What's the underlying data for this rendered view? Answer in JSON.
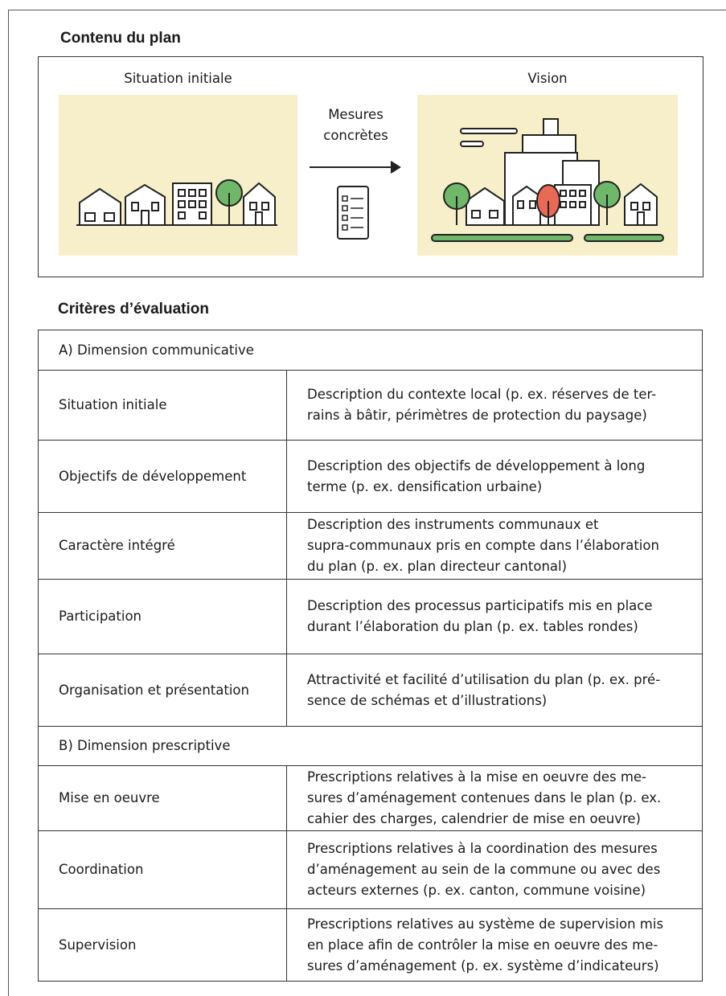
{
  "plan": {
    "title": "Contenu du plan",
    "initial_label": "Situation initiale",
    "measures_label": [
      "Mesures",
      "concrètes"
    ],
    "vision_label": "Vision"
  },
  "criteria": {
    "title": "Critères d’évaluation",
    "groups": [
      {
        "heading": "A) Dimension communicative",
        "rows": [
          {
            "criterion": "Situation initiale",
            "description": [
              "Description du contexte local (p. ex. réserves de ter-",
              "rains à bâtir, périmètres de protection du paysage)"
            ]
          },
          {
            "criterion": "Objectifs de développement",
            "description": [
              "Description des objectifs de développement à long",
              "terme (p. ex. densification urbaine)"
            ]
          },
          {
            "criterion": "Caractère intégré",
            "description": [
              "Description des instruments communaux et",
              "supra-communaux pris en compte dans l’élaboration",
              "du plan (p. ex. plan directeur cantonal)"
            ]
          },
          {
            "criterion": "Participation",
            "description": [
              "Description des processus participatifs mis en place",
              "durant l’élaboration du plan (p. ex. tables rondes)"
            ]
          },
          {
            "criterion": "Organisation et présentation",
            "description": [
              "Attractivité et facilité d’utilisation du plan (p. ex. pré-",
              "sence de schémas et d’illustrations)"
            ]
          }
        ]
      },
      {
        "heading": "B) Dimension prescriptive",
        "rows": [
          {
            "criterion": "Mise en oeuvre",
            "description": [
              "Prescriptions relatives à la mise en oeuvre des me-",
              "sures d’aménagement contenues dans le plan (p. ex.",
              "cahier des charges, calendrier de mise en oeuvre)"
            ]
          },
          {
            "criterion": "Coordination",
            "description": [
              "Prescriptions relatives à la coordination des mesures",
              "d’aménagement au sein de la commune ou avec des",
              "acteurs externes (p. ex. canton, commune voisine)"
            ]
          },
          {
            "criterion": "Supervision",
            "description": [
              "Prescriptions relatives au système de supervision mis",
              "en place afin de contrôler la mise en oeuvre des me-",
              "sures d’aménagement (p. ex. système d’indicateurs)"
            ]
          }
        ]
      }
    ]
  }
}
